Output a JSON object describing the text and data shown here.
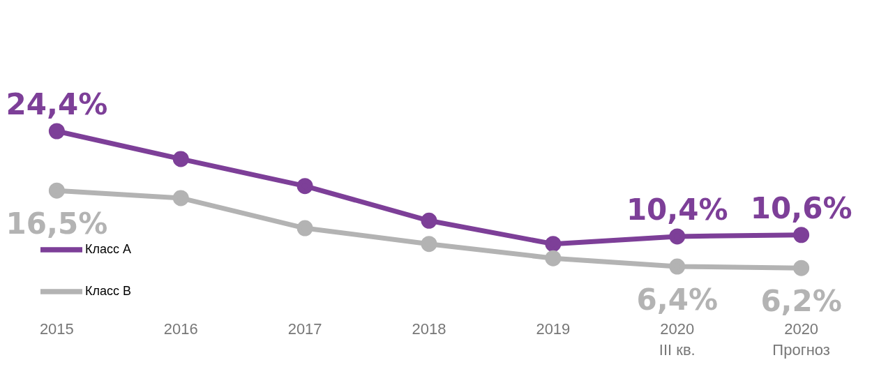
{
  "chart_data": {
    "type": "line",
    "categories": [
      "2015",
      "2016",
      "2017",
      "2018",
      "2019",
      "2020\nIII кв.",
      "2020\nПрогноз"
    ],
    "series": [
      {
        "name": "Класс А",
        "color": "#7d3f98",
        "values": [
          24.4,
          20.7,
          17.1,
          12.5,
          9.4,
          10.4,
          10.6
        ],
        "value_labels": [
          "24,4%",
          null,
          null,
          null,
          null,
          "10,4%",
          "10,6%"
        ]
      },
      {
        "name": "Класс В",
        "color": "#b3b3b3",
        "values": [
          16.5,
          15.5,
          11.5,
          9.4,
          7.5,
          6.4,
          6.2
        ],
        "value_labels": [
          "16,5%",
          null,
          null,
          null,
          null,
          "6,4%",
          "6,2%"
        ]
      }
    ],
    "legend": "left",
    "marker": "circle",
    "line_style": "solid",
    "grid": false
  }
}
